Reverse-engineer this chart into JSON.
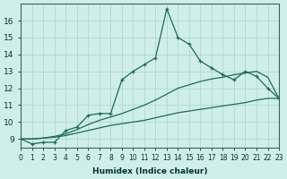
{
  "xlabel": "Humidex (Indice chaleur)",
  "ylabel": "",
  "background_color": "#d0eee8",
  "grid_color": "#b0d8cc",
  "line_color": "#1a6b5a",
  "x_data": [
    0,
    1,
    2,
    3,
    4,
    5,
    6,
    7,
    8,
    9,
    10,
    11,
    12,
    13,
    14,
    15,
    16,
    17,
    18,
    19,
    20,
    21,
    22,
    23
  ],
  "y_main": [
    9.0,
    8.7,
    8.8,
    8.8,
    9.5,
    9.7,
    10.4,
    10.5,
    10.5,
    12.5,
    13.0,
    13.4,
    13.8,
    16.7,
    15.0,
    14.6,
    13.6,
    13.2,
    12.8,
    12.5,
    13.0,
    12.7,
    12.0,
    11.4
  ],
  "y_line1": [
    9.0,
    9.0,
    9.05,
    9.1,
    9.2,
    9.35,
    9.5,
    9.65,
    9.8,
    9.9,
    10.0,
    10.1,
    10.25,
    10.4,
    10.55,
    10.65,
    10.75,
    10.85,
    10.95,
    11.05,
    11.15,
    11.3,
    11.4,
    11.4
  ],
  "y_line2": [
    9.0,
    9.0,
    9.05,
    9.15,
    9.3,
    9.55,
    9.85,
    10.1,
    10.3,
    10.5,
    10.75,
    11.0,
    11.3,
    11.65,
    12.0,
    12.2,
    12.4,
    12.55,
    12.65,
    12.8,
    12.9,
    13.0,
    12.65,
    11.4
  ],
  "xlim": [
    0,
    23
  ],
  "ylim": [
    8.5,
    17.0
  ],
  "yticks": [
    9,
    10,
    11,
    12,
    13,
    14,
    15,
    16
  ],
  "xticks": [
    0,
    1,
    2,
    3,
    4,
    5,
    6,
    7,
    8,
    9,
    10,
    11,
    12,
    13,
    14,
    15,
    16,
    17,
    18,
    19,
    20,
    21,
    22,
    23
  ]
}
